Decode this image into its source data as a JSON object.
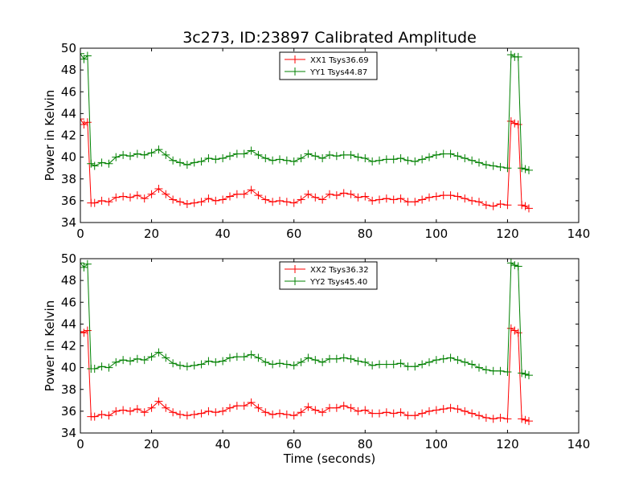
{
  "figure": {
    "title": "3c273, ID:23897 Calibrated Amplitude",
    "xlabel": "Time (seconds)"
  },
  "chart_data": [
    {
      "type": "line",
      "title": "3c273, ID:23897 Calibrated Amplitude",
      "xlabel": "",
      "ylabel": "Power in Kelvin",
      "xlim": [
        0,
        140
      ],
      "ylim": [
        34,
        50
      ],
      "xticks": [
        "0",
        "20",
        "40",
        "60",
        "80",
        "100",
        "120",
        "140"
      ],
      "yticks": [
        "34",
        "36",
        "38",
        "40",
        "42",
        "44",
        "46",
        "48",
        "50"
      ],
      "grid": false,
      "legend_position": "top-center",
      "marker": "+",
      "series": [
        {
          "name": "XX1 Tsys36.69",
          "color": "#ff0000",
          "x": [
            0,
            1,
            2,
            3,
            4,
            6,
            8,
            10,
            12,
            14,
            16,
            18,
            20,
            22,
            24,
            26,
            28,
            30,
            32,
            34,
            36,
            38,
            40,
            42,
            44,
            46,
            48,
            50,
            52,
            54,
            56,
            58,
            60,
            62,
            64,
            66,
            68,
            70,
            72,
            74,
            76,
            78,
            80,
            82,
            84,
            86,
            88,
            90,
            92,
            94,
            96,
            98,
            100,
            102,
            104,
            106,
            108,
            110,
            112,
            114,
            116,
            118,
            120,
            121,
            122,
            123,
            124,
            125,
            126
          ],
          "y": [
            43.5,
            43,
            43.2,
            35.8,
            35.8,
            36,
            35.9,
            36.3,
            36.4,
            36.3,
            36.5,
            36.2,
            36.6,
            37.1,
            36.6,
            36.1,
            35.9,
            35.7,
            35.8,
            35.9,
            36.2,
            36.0,
            36.1,
            36.4,
            36.6,
            36.6,
            37.0,
            36.5,
            36.1,
            35.9,
            36.0,
            35.9,
            35.8,
            36.1,
            36.6,
            36.3,
            36.1,
            36.6,
            36.5,
            36.7,
            36.6,
            36.3,
            36.4,
            36.0,
            36.1,
            36.2,
            36.1,
            36.2,
            35.9,
            35.9,
            36.1,
            36.3,
            36.4,
            36.5,
            36.5,
            36.4,
            36.2,
            36.0,
            35.9,
            35.6,
            35.5,
            35.7,
            35.6,
            43.3,
            43.1,
            43.0,
            35.6,
            35.5,
            35.3
          ]
        },
        {
          "name": "YY1 Tsys44.87",
          "color": "#008000",
          "x": [
            0,
            1,
            2,
            3,
            4,
            6,
            8,
            10,
            12,
            14,
            16,
            18,
            20,
            22,
            24,
            26,
            28,
            30,
            32,
            34,
            36,
            38,
            40,
            42,
            44,
            46,
            48,
            50,
            52,
            54,
            56,
            58,
            60,
            62,
            64,
            66,
            68,
            70,
            72,
            74,
            76,
            78,
            80,
            82,
            84,
            86,
            88,
            90,
            92,
            94,
            96,
            98,
            100,
            102,
            104,
            106,
            108,
            110,
            112,
            114,
            116,
            118,
            120,
            121,
            122,
            123,
            124,
            125,
            126
          ],
          "y": [
            49.5,
            49,
            49.3,
            39.4,
            39.2,
            39.5,
            39.4,
            40.0,
            40.2,
            40.1,
            40.3,
            40.2,
            40.4,
            40.7,
            40.2,
            39.7,
            39.5,
            39.3,
            39.5,
            39.6,
            39.9,
            39.8,
            39.9,
            40.1,
            40.3,
            40.3,
            40.6,
            40.2,
            39.9,
            39.7,
            39.8,
            39.7,
            39.6,
            39.9,
            40.3,
            40.1,
            39.9,
            40.2,
            40.1,
            40.2,
            40.2,
            40.0,
            39.9,
            39.6,
            39.7,
            39.8,
            39.8,
            39.9,
            39.7,
            39.6,
            39.8,
            40.0,
            40.2,
            40.3,
            40.3,
            40.1,
            39.9,
            39.7,
            39.5,
            39.3,
            39.2,
            39.1,
            39.0,
            49.4,
            49.2,
            49.2,
            39.0,
            38.9,
            38.8
          ]
        }
      ]
    },
    {
      "type": "line",
      "title": "",
      "xlabel": "Time (seconds)",
      "ylabel": "Power in Kelvin",
      "xlim": [
        0,
        140
      ],
      "ylim": [
        34,
        50
      ],
      "xticks": [
        "0",
        "20",
        "40",
        "60",
        "80",
        "100",
        "120",
        "140"
      ],
      "yticks": [
        "34",
        "36",
        "38",
        "40",
        "42",
        "44",
        "46",
        "48",
        "50"
      ],
      "grid": false,
      "legend_position": "top-center",
      "marker": "+",
      "series": [
        {
          "name": "XX2 Tsys36.32",
          "color": "#ff0000",
          "x": [
            0,
            1,
            2,
            3,
            4,
            6,
            8,
            10,
            12,
            14,
            16,
            18,
            20,
            22,
            24,
            26,
            28,
            30,
            32,
            34,
            36,
            38,
            40,
            42,
            44,
            46,
            48,
            50,
            52,
            54,
            56,
            58,
            60,
            62,
            64,
            66,
            68,
            70,
            72,
            74,
            76,
            78,
            80,
            82,
            84,
            86,
            88,
            90,
            92,
            94,
            96,
            98,
            100,
            102,
            104,
            106,
            108,
            110,
            112,
            114,
            116,
            118,
            120,
            121,
            122,
            123,
            124,
            125,
            126
          ],
          "y": [
            43.3,
            43.2,
            43.4,
            35.5,
            35.5,
            35.7,
            35.6,
            36.0,
            36.1,
            36.0,
            36.2,
            35.9,
            36.3,
            36.9,
            36.3,
            35.9,
            35.7,
            35.6,
            35.7,
            35.8,
            36.0,
            35.9,
            36.0,
            36.3,
            36.5,
            36.5,
            36.8,
            36.3,
            35.9,
            35.7,
            35.8,
            35.7,
            35.6,
            35.9,
            36.4,
            36.1,
            35.9,
            36.3,
            36.3,
            36.5,
            36.3,
            36.0,
            36.1,
            35.8,
            35.8,
            35.9,
            35.8,
            35.9,
            35.6,
            35.6,
            35.8,
            36.0,
            36.1,
            36.2,
            36.3,
            36.2,
            36.0,
            35.8,
            35.6,
            35.4,
            35.3,
            35.4,
            35.3,
            43.6,
            43.4,
            43.2,
            35.3,
            35.2,
            35.1
          ]
        },
        {
          "name": "YY2 Tsys45.40",
          "color": "#008000",
          "x": [
            0,
            1,
            2,
            3,
            4,
            6,
            8,
            10,
            12,
            14,
            16,
            18,
            20,
            22,
            24,
            26,
            28,
            30,
            32,
            34,
            36,
            38,
            40,
            42,
            44,
            46,
            48,
            50,
            52,
            54,
            56,
            58,
            60,
            62,
            64,
            66,
            68,
            70,
            72,
            74,
            76,
            78,
            80,
            82,
            84,
            86,
            88,
            90,
            92,
            94,
            96,
            98,
            100,
            102,
            104,
            106,
            108,
            110,
            112,
            114,
            116,
            118,
            120,
            121,
            122,
            123,
            124,
            125,
            126
          ],
          "y": [
            49.6,
            49.2,
            49.5,
            39.9,
            39.9,
            40.1,
            40.0,
            40.5,
            40.7,
            40.6,
            40.8,
            40.7,
            41.0,
            41.4,
            40.9,
            40.4,
            40.2,
            40.1,
            40.2,
            40.3,
            40.6,
            40.5,
            40.6,
            40.9,
            41.0,
            41.0,
            41.2,
            40.9,
            40.5,
            40.3,
            40.4,
            40.3,
            40.2,
            40.5,
            40.9,
            40.7,
            40.5,
            40.8,
            40.8,
            40.9,
            40.8,
            40.6,
            40.5,
            40.2,
            40.3,
            40.3,
            40.3,
            40.4,
            40.1,
            40.1,
            40.3,
            40.5,
            40.7,
            40.8,
            40.9,
            40.7,
            40.5,
            40.3,
            40.0,
            39.8,
            39.7,
            39.7,
            39.6,
            49.6,
            49.4,
            49.3,
            39.5,
            39.4,
            39.3
          ]
        }
      ]
    }
  ]
}
